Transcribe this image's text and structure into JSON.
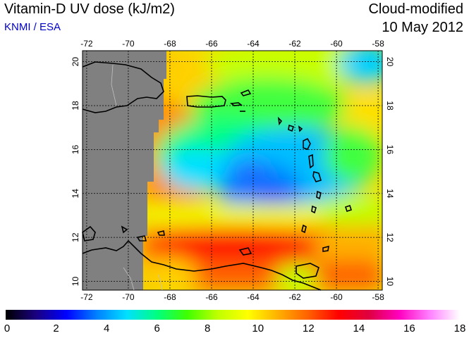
{
  "header": {
    "title": "Vitamin-D UV dose (kJ/m2)",
    "source": "KNMI / ESA",
    "product": "Cloud-modified",
    "date": "10 May 2012"
  },
  "map": {
    "lon_ticks": [
      "-72",
      "-70",
      "-68",
      "-66",
      "-64",
      "-62",
      "-60",
      "-58"
    ],
    "lat_ticks": [
      "10",
      "12",
      "14",
      "16",
      "18",
      "20"
    ],
    "lon_range": [
      -72,
      -58
    ],
    "lat_range": [
      9.5,
      20.5
    ],
    "grid": true,
    "region": "Caribbean Sea / Lesser Antilles"
  },
  "colorbar": {
    "min": 0,
    "max": 18,
    "tick_labels": [
      "0",
      "2",
      "4",
      "6",
      "8",
      "10",
      "12",
      "14",
      "16",
      "18"
    ],
    "colors": [
      "#000000",
      "#1a0080",
      "#0000ff",
      "#0080ff",
      "#00e0ff",
      "#00ff80",
      "#40ff00",
      "#c0ff00",
      "#ffff00",
      "#ffb000",
      "#ff6000",
      "#ff0000",
      "#e00040",
      "#ff00c0",
      "#ff80ff",
      "#ffffff"
    ]
  },
  "colors": {
    "land_nodata": "#808080",
    "coast": "#000000"
  }
}
